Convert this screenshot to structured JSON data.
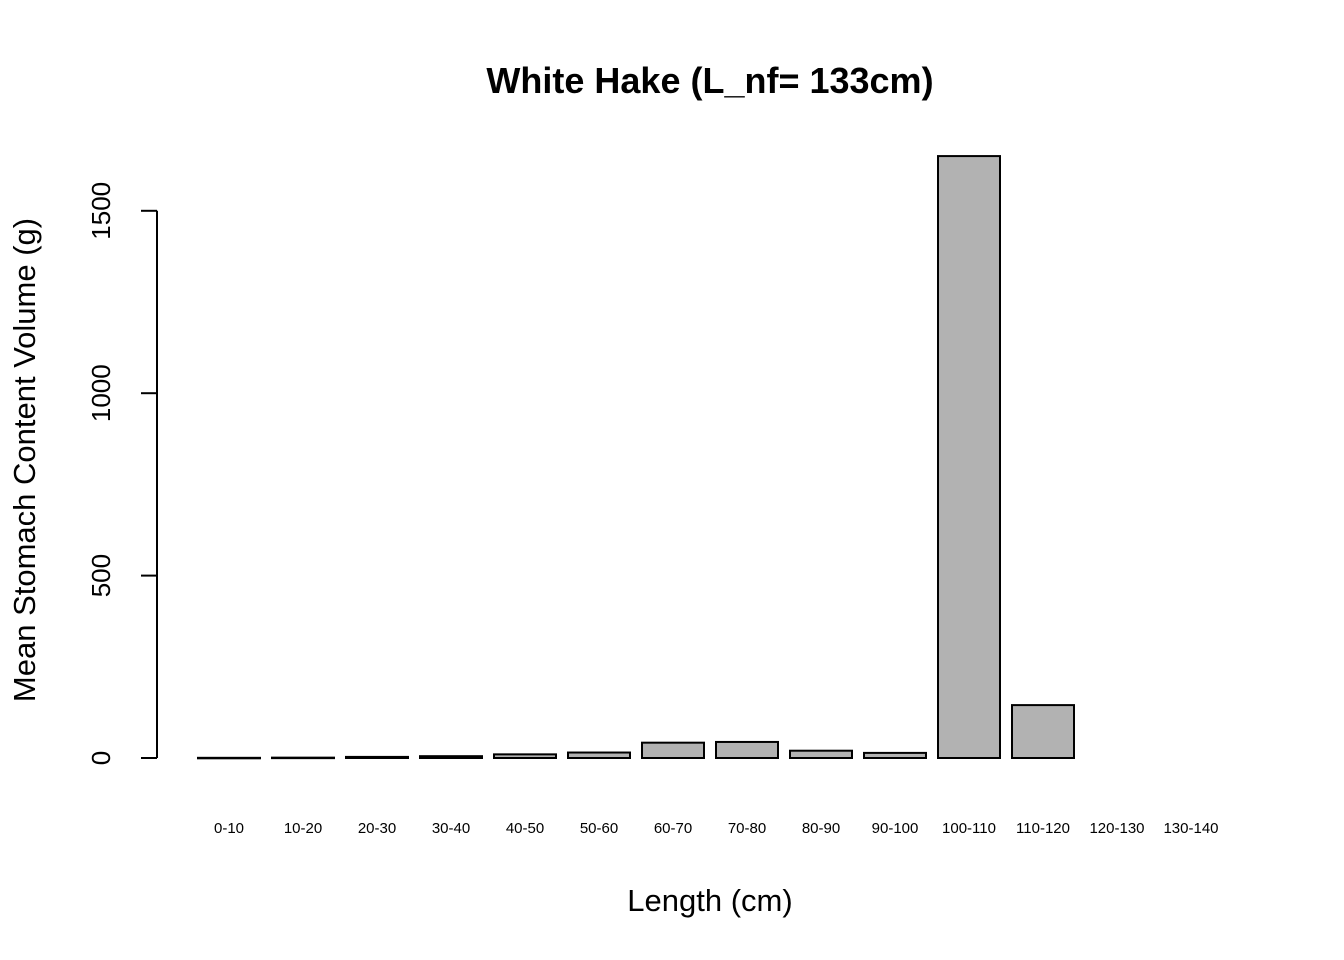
{
  "chart_data": {
    "type": "bar",
    "title": "White Hake (L_nf= 133cm)",
    "xlabel": "Length (cm)",
    "ylabel": "Mean Stomach Content Volume (g)",
    "categories": [
      "0-10",
      "10-20",
      "20-30",
      "30-40",
      "40-50",
      "50-60",
      "60-70",
      "70-80",
      "80-90",
      "90-100",
      "100-110",
      "110-120",
      "120-130",
      "130-140"
    ],
    "values": [
      0.5,
      1,
      3,
      5,
      10,
      15,
      42,
      44,
      20,
      14,
      1650,
      145,
      0,
      0
    ],
    "yticks": [
      0,
      500,
      1000,
      1500
    ],
    "ylim": [
      0,
      1650
    ],
    "bar_color": "#b2b2b2",
    "grid": false
  }
}
